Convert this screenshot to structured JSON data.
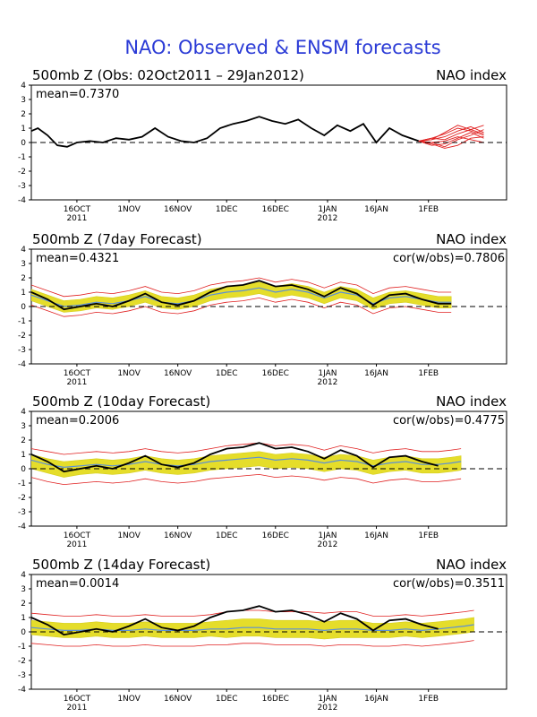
{
  "figure_title": "NAO: Observed & ENSM forecasts",
  "colors": {
    "title": "#2b3bd6",
    "observed": "#000000",
    "ensemble_mean": "#5a8fd8",
    "spread": "#e5dd2a",
    "spread_edge": "#d6cf1e",
    "members": "#e02020",
    "frame": "#000000"
  },
  "chart_data": [
    {
      "type": "line",
      "panel_title": "500mb  Z (Obs: 02Oct2011 – 29Jan2012)",
      "right_label": "NAO index",
      "mean_label": "mean=0.7370",
      "cor_label": "",
      "x_start": "2011-10-02",
      "x_end": "2012-02-25",
      "x_ticks": [
        {
          "date": "2011-10-16",
          "label": "16OCT",
          "sub": "2011"
        },
        {
          "date": "2011-11-01",
          "label": "1NOV",
          "sub": ""
        },
        {
          "date": "2011-11-16",
          "label": "16NOV",
          "sub": ""
        },
        {
          "date": "2011-12-01",
          "label": "1DEC",
          "sub": ""
        },
        {
          "date": "2011-12-16",
          "label": "16DEC",
          "sub": ""
        },
        {
          "date": "2012-01-01",
          "label": "1JAN",
          "sub": "2012"
        },
        {
          "date": "2012-01-16",
          "label": "16JAN",
          "sub": ""
        },
        {
          "date": "2012-02-01",
          "label": "1FEB",
          "sub": ""
        }
      ],
      "ylim": [
        -4,
        4
      ],
      "y_ticks": [
        4,
        3,
        2,
        1,
        0,
        -1,
        -2,
        -3,
        -4
      ],
      "observed": {
        "dates": [
          "2011-10-02",
          "2011-10-04",
          "2011-10-07",
          "2011-10-10",
          "2011-10-13",
          "2011-10-16",
          "2011-10-20",
          "2011-10-24",
          "2011-10-28",
          "2011-11-01",
          "2011-11-05",
          "2011-11-09",
          "2011-11-13",
          "2011-11-17",
          "2011-11-21",
          "2011-11-25",
          "2011-11-29",
          "2011-12-03",
          "2011-12-07",
          "2011-12-11",
          "2011-12-15",
          "2011-12-19",
          "2011-12-23",
          "2011-12-27",
          "2011-12-31",
          "2012-01-04",
          "2012-01-08",
          "2012-01-12",
          "2012-01-16",
          "2012-01-20",
          "2012-01-24",
          "2012-01-29"
        ],
        "values": [
          0.8,
          1.0,
          0.5,
          -0.2,
          -0.3,
          0.0,
          0.1,
          0.0,
          0.3,
          0.2,
          0.4,
          1.0,
          0.4,
          0.1,
          0.0,
          0.3,
          1.0,
          1.3,
          1.5,
          1.8,
          1.5,
          1.3,
          1.6,
          1.0,
          0.5,
          1.2,
          0.8,
          1.3,
          0.0,
          1.0,
          0.5,
          0.1
        ]
      },
      "members": [
        {
          "values": [
            0.1,
            0.3,
            0.6,
            1.0,
            0.8,
            0.5
          ]
        },
        {
          "values": [
            0.1,
            0.0,
            -0.3,
            0.2,
            0.5,
            0.9
          ]
        },
        {
          "values": [
            0.1,
            0.2,
            0.4,
            0.8,
            1.1,
            0.7
          ]
        },
        {
          "values": [
            0.1,
            -0.1,
            -0.4,
            -0.2,
            0.3,
            0.4
          ]
        },
        {
          "values": [
            0.1,
            0.3,
            0.2,
            0.6,
            0.9,
            1.2
          ]
        },
        {
          "values": [
            0.1,
            0.0,
            0.1,
            0.4,
            0.2,
            0.0
          ]
        },
        {
          "values": [
            0.1,
            0.2,
            0.7,
            1.2,
            0.9,
            0.6
          ]
        },
        {
          "values": [
            0.1,
            -0.2,
            -0.1,
            0.3,
            0.7,
            0.3
          ]
        }
      ],
      "member_dates": [
        "2012-01-29",
        "2012-02-02",
        "2012-02-06",
        "2012-02-10",
        "2012-02-14",
        "2012-02-18"
      ]
    },
    {
      "type": "line",
      "panel_title": "500mb  Z (7day Forecast)",
      "right_label": "NAO index",
      "mean_label": "mean=0.4321",
      "cor_label": "cor(w/obs)=0.7806",
      "x_start": "2011-10-02",
      "x_end": "2012-02-25",
      "x_ticks": [
        {
          "date": "2011-10-16",
          "label": "16OCT",
          "sub": "2011"
        },
        {
          "date": "2011-11-01",
          "label": "1NOV",
          "sub": ""
        },
        {
          "date": "2011-11-16",
          "label": "16NOV",
          "sub": ""
        },
        {
          "date": "2011-12-01",
          "label": "1DEC",
          "sub": ""
        },
        {
          "date": "2011-12-16",
          "label": "16DEC",
          "sub": ""
        },
        {
          "date": "2012-01-01",
          "label": "1JAN",
          "sub": "2012"
        },
        {
          "date": "2012-01-16",
          "label": "16JAN",
          "sub": ""
        },
        {
          "date": "2012-02-01",
          "label": "1FEB",
          "sub": ""
        }
      ],
      "ylim": [
        -4,
        4
      ],
      "y_ticks": [
        4,
        3,
        2,
        1,
        0,
        -1,
        -2,
        -3,
        -4
      ],
      "dates": [
        "2011-10-02",
        "2011-10-07",
        "2011-10-12",
        "2011-10-17",
        "2011-10-22",
        "2011-10-27",
        "2011-11-01",
        "2011-11-06",
        "2011-11-11",
        "2011-11-16",
        "2011-11-21",
        "2011-11-26",
        "2011-12-01",
        "2011-12-06",
        "2011-12-11",
        "2011-12-16",
        "2011-12-21",
        "2011-12-26",
        "2011-12-31",
        "2012-01-05",
        "2012-01-10",
        "2012-01-15",
        "2012-01-20",
        "2012-01-25",
        "2012-01-30",
        "2012-02-04",
        "2012-02-08"
      ],
      "observed": [
        1.0,
        0.5,
        -0.2,
        0.0,
        0.2,
        0.0,
        0.4,
        0.9,
        0.3,
        0.1,
        0.4,
        1.0,
        1.4,
        1.5,
        1.8,
        1.4,
        1.5,
        1.2,
        0.7,
        1.3,
        0.9,
        0.1,
        0.8,
        0.9,
        0.5,
        0.2,
        0.2
      ],
      "ensemble_mean": [
        0.8,
        0.4,
        0.0,
        0.1,
        0.3,
        0.2,
        0.4,
        0.7,
        0.3,
        0.2,
        0.4,
        0.8,
        1.0,
        1.1,
        1.3,
        1.0,
        1.2,
        1.0,
        0.6,
        1.0,
        0.8,
        0.2,
        0.6,
        0.7,
        0.5,
        0.3,
        0.3
      ],
      "spread_upper": [
        1.2,
        0.8,
        0.4,
        0.5,
        0.7,
        0.6,
        0.8,
        1.1,
        0.7,
        0.6,
        0.8,
        1.2,
        1.4,
        1.5,
        1.7,
        1.4,
        1.6,
        1.4,
        1.0,
        1.4,
        1.2,
        0.6,
        1.0,
        1.1,
        0.9,
        0.7,
        0.7
      ],
      "spread_lower": [
        0.4,
        0.0,
        -0.4,
        -0.3,
        -0.1,
        -0.2,
        0.0,
        0.3,
        -0.1,
        -0.2,
        0.0,
        0.4,
        0.6,
        0.7,
        0.9,
        0.6,
        0.8,
        0.6,
        0.2,
        0.6,
        0.4,
        -0.2,
        0.2,
        0.3,
        0.1,
        -0.1,
        -0.1
      ],
      "members_upper": [
        1.5,
        1.1,
        0.7,
        0.8,
        1.0,
        0.9,
        1.1,
        1.4,
        1.0,
        0.9,
        1.1,
        1.5,
        1.7,
        1.8,
        2.0,
        1.7,
        1.9,
        1.7,
        1.3,
        1.7,
        1.5,
        0.9,
        1.3,
        1.4,
        1.2,
        1.0,
        1.0
      ],
      "members_lower": [
        0.1,
        -0.3,
        -0.7,
        -0.6,
        -0.4,
        -0.5,
        -0.3,
        0.0,
        -0.4,
        -0.5,
        -0.3,
        0.1,
        0.3,
        0.4,
        0.6,
        0.3,
        0.5,
        0.3,
        -0.1,
        0.3,
        0.1,
        -0.5,
        -0.1,
        0.0,
        -0.2,
        -0.4,
        -0.4
      ]
    },
    {
      "type": "line",
      "panel_title": "500mb  Z (10day Forecast)",
      "right_label": "NAO index",
      "mean_label": "mean=0.2006",
      "cor_label": "cor(w/obs)=0.4775",
      "x_start": "2011-10-02",
      "x_end": "2012-02-25",
      "x_ticks": [
        {
          "date": "2011-10-16",
          "label": "16OCT",
          "sub": "2011"
        },
        {
          "date": "2011-11-01",
          "label": "1NOV",
          "sub": ""
        },
        {
          "date": "2011-11-16",
          "label": "16NOV",
          "sub": ""
        },
        {
          "date": "2011-12-01",
          "label": "1DEC",
          "sub": ""
        },
        {
          "date": "2011-12-16",
          "label": "16DEC",
          "sub": ""
        },
        {
          "date": "2012-01-01",
          "label": "1JAN",
          "sub": "2012"
        },
        {
          "date": "2012-01-16",
          "label": "16JAN",
          "sub": ""
        },
        {
          "date": "2012-02-01",
          "label": "1FEB",
          "sub": ""
        }
      ],
      "ylim": [
        -4,
        4
      ],
      "y_ticks": [
        4,
        3,
        2,
        1,
        0,
        -1,
        -2,
        -3,
        -4
      ],
      "dates": [
        "2011-10-02",
        "2011-10-07",
        "2011-10-12",
        "2011-10-17",
        "2011-10-22",
        "2011-10-27",
        "2011-11-01",
        "2011-11-06",
        "2011-11-11",
        "2011-11-16",
        "2011-11-21",
        "2011-11-26",
        "2011-12-01",
        "2011-12-06",
        "2011-12-11",
        "2011-12-16",
        "2011-12-21",
        "2011-12-26",
        "2011-12-31",
        "2012-01-05",
        "2012-01-10",
        "2012-01-15",
        "2012-01-20",
        "2012-01-25",
        "2012-01-30",
        "2012-02-04",
        "2012-02-08",
        "2012-02-11"
      ],
      "observed": [
        1.0,
        0.5,
        -0.2,
        0.0,
        0.2,
        0.0,
        0.4,
        0.9,
        0.3,
        0.1,
        0.4,
        1.0,
        1.4,
        1.5,
        1.8,
        1.4,
        1.5,
        1.2,
        0.7,
        1.3,
        0.9,
        0.1,
        0.8,
        0.9,
        0.5,
        0.2,
        null,
        null
      ],
      "ensemble_mean": [
        0.6,
        0.3,
        0.1,
        0.2,
        0.3,
        0.2,
        0.3,
        0.5,
        0.3,
        0.2,
        0.3,
        0.5,
        0.6,
        0.7,
        0.8,
        0.6,
        0.7,
        0.6,
        0.4,
        0.6,
        0.5,
        0.2,
        0.4,
        0.5,
        0.3,
        0.3,
        0.4,
        0.5
      ],
      "spread_upper": [
        1.0,
        0.7,
        0.5,
        0.6,
        0.7,
        0.6,
        0.7,
        0.9,
        0.7,
        0.6,
        0.7,
        0.9,
        1.0,
        1.1,
        1.2,
        1.0,
        1.1,
        1.0,
        0.8,
        1.0,
        0.9,
        0.6,
        0.8,
        0.9,
        0.7,
        0.7,
        0.8,
        0.9
      ],
      "spread_lower": [
        0.0,
        -0.3,
        -0.6,
        -0.4,
        -0.3,
        -0.4,
        -0.3,
        -0.1,
        -0.3,
        -0.4,
        -0.3,
        -0.1,
        0.0,
        0.1,
        0.2,
        0.0,
        0.1,
        0.0,
        -0.2,
        0.0,
        -0.1,
        -0.4,
        -0.2,
        -0.1,
        -0.3,
        -0.3,
        -0.2,
        -0.1
      ],
      "members_upper": [
        1.4,
        1.2,
        1.0,
        1.1,
        1.2,
        1.1,
        1.2,
        1.4,
        1.2,
        1.1,
        1.2,
        1.4,
        1.6,
        1.7,
        1.8,
        1.6,
        1.7,
        1.6,
        1.3,
        1.6,
        1.4,
        1.1,
        1.3,
        1.4,
        1.2,
        1.2,
        1.3,
        1.4
      ],
      "members_lower": [
        -0.6,
        -0.9,
        -1.1,
        -1.0,
        -0.9,
        -1.0,
        -0.9,
        -0.7,
        -0.9,
        -1.0,
        -0.9,
        -0.7,
        -0.6,
        -0.5,
        -0.4,
        -0.6,
        -0.5,
        -0.6,
        -0.8,
        -0.6,
        -0.7,
        -1.0,
        -0.8,
        -0.7,
        -0.9,
        -0.9,
        -0.8,
        -0.7
      ]
    },
    {
      "type": "line",
      "panel_title": "500mb  Z (14day Forecast)",
      "right_label": "NAO index",
      "mean_label": "mean=0.0014",
      "cor_label": "cor(w/obs)=0.3511",
      "x_start": "2011-10-02",
      "x_end": "2012-02-25",
      "x_ticks": [
        {
          "date": "2011-10-16",
          "label": "16OCT",
          "sub": "2011"
        },
        {
          "date": "2011-11-01",
          "label": "1NOV",
          "sub": ""
        },
        {
          "date": "2011-11-16",
          "label": "16NOV",
          "sub": ""
        },
        {
          "date": "2011-12-01",
          "label": "1DEC",
          "sub": ""
        },
        {
          "date": "2011-12-16",
          "label": "16DEC",
          "sub": ""
        },
        {
          "date": "2012-01-01",
          "label": "1JAN",
          "sub": "2012"
        },
        {
          "date": "2012-01-16",
          "label": "16JAN",
          "sub": ""
        },
        {
          "date": "2012-02-01",
          "label": "1FEB",
          "sub": ""
        }
      ],
      "ylim": [
        -4,
        4
      ],
      "y_ticks": [
        4,
        3,
        2,
        1,
        0,
        -1,
        -2,
        -3,
        -4
      ],
      "dates": [
        "2011-10-02",
        "2011-10-07",
        "2011-10-12",
        "2011-10-17",
        "2011-10-22",
        "2011-10-27",
        "2011-11-01",
        "2011-11-06",
        "2011-11-11",
        "2011-11-16",
        "2011-11-21",
        "2011-11-26",
        "2011-12-01",
        "2011-12-06",
        "2011-12-11",
        "2011-12-16",
        "2011-12-21",
        "2011-12-26",
        "2011-12-31",
        "2012-01-05",
        "2012-01-10",
        "2012-01-15",
        "2012-01-20",
        "2012-01-25",
        "2012-01-30",
        "2012-02-04",
        "2012-02-08",
        "2012-02-12",
        "2012-02-15"
      ],
      "observed": [
        1.0,
        0.5,
        -0.2,
        0.0,
        0.2,
        0.0,
        0.4,
        0.9,
        0.3,
        0.1,
        0.4,
        1.0,
        1.4,
        1.5,
        1.8,
        1.4,
        1.5,
        1.2,
        0.7,
        1.3,
        0.9,
        0.1,
        0.8,
        0.9,
        0.5,
        0.2,
        null,
        null,
        null
      ],
      "ensemble_mean": [
        0.3,
        0.2,
        0.1,
        0.1,
        0.2,
        0.1,
        0.1,
        0.2,
        0.1,
        0.1,
        0.1,
        0.2,
        0.2,
        0.3,
        0.3,
        0.2,
        0.2,
        0.2,
        0.1,
        0.2,
        0.2,
        0.1,
        0.1,
        0.2,
        0.1,
        0.2,
        0.3,
        0.4,
        0.5
      ],
      "spread_upper": [
        0.8,
        0.7,
        0.6,
        0.6,
        0.7,
        0.6,
        0.6,
        0.7,
        0.6,
        0.6,
        0.6,
        0.7,
        0.8,
        0.9,
        0.9,
        0.8,
        0.8,
        0.8,
        0.7,
        0.8,
        0.8,
        0.6,
        0.6,
        0.7,
        0.6,
        0.7,
        0.8,
        0.9,
        1.0
      ],
      "spread_lower": [
        -0.2,
        -0.3,
        -0.4,
        -0.4,
        -0.3,
        -0.4,
        -0.4,
        -0.3,
        -0.4,
        -0.4,
        -0.4,
        -0.3,
        -0.4,
        -0.3,
        -0.3,
        -0.4,
        -0.4,
        -0.4,
        -0.5,
        -0.4,
        -0.4,
        -0.4,
        -0.4,
        -0.3,
        -0.4,
        -0.3,
        -0.2,
        -0.1,
        0.0
      ],
      "members_upper": [
        1.3,
        1.2,
        1.1,
        1.1,
        1.2,
        1.1,
        1.1,
        1.2,
        1.1,
        1.1,
        1.1,
        1.2,
        1.4,
        1.5,
        1.5,
        1.4,
        1.4,
        1.4,
        1.3,
        1.4,
        1.4,
        1.1,
        1.1,
        1.2,
        1.1,
        1.2,
        1.3,
        1.4,
        1.5
      ],
      "members_lower": [
        -0.8,
        -0.9,
        -1.0,
        -1.0,
        -0.9,
        -1.0,
        -1.0,
        -0.9,
        -1.0,
        -1.0,
        -1.0,
        -0.9,
        -0.9,
        -0.8,
        -0.8,
        -0.9,
        -0.9,
        -0.9,
        -1.0,
        -0.9,
        -0.9,
        -1.0,
        -1.0,
        -0.9,
        -1.0,
        -0.9,
        -0.8,
        -0.7,
        -0.6
      ]
    }
  ]
}
